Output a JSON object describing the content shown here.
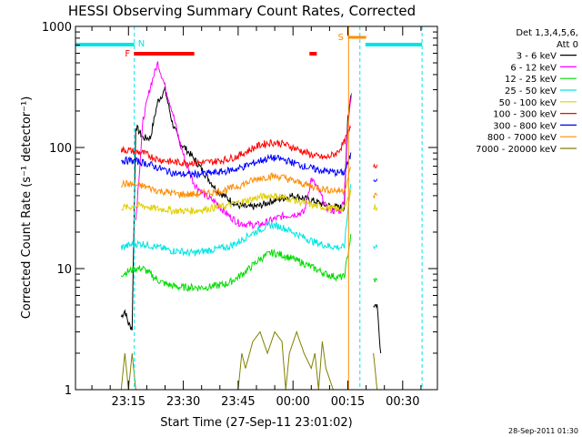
{
  "chart_data": {
    "type": "line",
    "title": "HESSI Observing Summary Count Rates, Corrected",
    "xlabel": "Start Time (27-Sep-11 23:01:02)",
    "ylabel": "Corrected Count Rate (s⁻¹ detector⁻¹)",
    "x_range_minutes": [
      -0.5,
      98.5
    ],
    "x_ticks": [
      {
        "m": 14,
        "label": "23:15"
      },
      {
        "m": 29,
        "label": "23:30"
      },
      {
        "m": 44,
        "label": "23:45"
      },
      {
        "m": 59,
        "label": "00:00"
      },
      {
        "m": 74,
        "label": "00:15"
      },
      {
        "m": 89,
        "label": "00:30"
      }
    ],
    "y_scale": "log",
    "ylim": [
      1,
      1000
    ],
    "y_ticks": [
      {
        "v": 1,
        "label": "1"
      },
      {
        "v": 10,
        "label": "10"
      },
      {
        "v": 100,
        "label": "100"
      },
      {
        "v": 1000,
        "label": "1000"
      }
    ],
    "legend": {
      "placement": "right",
      "header": [
        "Det 1,3,4,5,6,",
        "Att 0"
      ]
    },
    "series": [
      {
        "name": "3 - 6 keV",
        "color": "#000000",
        "x": [
          12,
          13,
          14,
          15,
          16,
          18,
          20,
          22,
          24,
          26,
          28,
          30,
          32,
          35,
          38,
          41,
          44,
          47,
          50,
          53,
          56,
          59,
          62,
          65,
          67,
          69,
          71,
          73,
          74,
          75,
          81,
          82,
          83
        ],
        "y": [
          4,
          4.5,
          3.5,
          3.2,
          150,
          120,
          120,
          240,
          300,
          160,
          110,
          95,
          80,
          60,
          45,
          38,
          33,
          32,
          33,
          36,
          38,
          40,
          38,
          36,
          34,
          33,
          32,
          32,
          180,
          300,
          5,
          5,
          2
        ]
      },
      {
        "name": "6 - 12 keV",
        "color": "#ff00ff",
        "x": [
          16,
          18,
          20,
          22,
          24,
          26,
          28,
          30,
          32,
          35,
          38,
          41,
          44,
          47,
          50,
          53,
          56,
          59,
          62,
          64,
          66,
          68,
          70,
          72,
          73,
          74,
          75
        ],
        "y": [
          25,
          170,
          320,
          500,
          320,
          200,
          110,
          70,
          50,
          40,
          35,
          28,
          24,
          23,
          23,
          25,
          27,
          28,
          29,
          55,
          45,
          32,
          30,
          30,
          38,
          150,
          280
        ]
      },
      {
        "name": "12 - 25 keV",
        "color": "#00dd00",
        "x": [
          12,
          14,
          16,
          18,
          20,
          22,
          24,
          26,
          28,
          30,
          32,
          35,
          38,
          41,
          44,
          47,
          50,
          53,
          56,
          59,
          62,
          65,
          68,
          71,
          73,
          75,
          81,
          82
        ],
        "y": [
          9,
          9.5,
          10,
          10,
          9,
          8,
          7.5,
          7.2,
          7,
          7,
          7,
          7,
          7.2,
          7.5,
          8.5,
          10,
          12,
          13.5,
          13,
          12,
          11,
          10,
          9,
          8.5,
          8.5,
          20,
          8,
          8
        ]
      },
      {
        "name": "25 - 50 keV",
        "color": "#00e5e5",
        "x": [
          12,
          14,
          16,
          18,
          20,
          22,
          24,
          26,
          28,
          30,
          32,
          35,
          38,
          41,
          44,
          47,
          50,
          53,
          56,
          59,
          62,
          65,
          68,
          71,
          73,
          75,
          81,
          82
        ],
        "y": [
          15,
          15.5,
          16,
          16,
          15.5,
          15,
          14.5,
          14,
          14,
          13.5,
          13.5,
          14,
          14.5,
          15,
          16.5,
          19,
          21,
          23,
          22,
          20,
          18,
          16.5,
          15.5,
          15,
          15,
          60,
          15,
          15
        ]
      },
      {
        "name": "50 - 100 keV",
        "color": "#e0d000",
        "x": [
          12,
          14,
          16,
          18,
          20,
          22,
          24,
          26,
          28,
          30,
          32,
          35,
          38,
          41,
          44,
          47,
          50,
          53,
          56,
          59,
          62,
          65,
          68,
          71,
          73,
          75,
          81,
          82
        ],
        "y": [
          32,
          32,
          33,
          33,
          32,
          31,
          31,
          30,
          30,
          30,
          30,
          31,
          32,
          33,
          35,
          37,
          39,
          40,
          39,
          37,
          35,
          33,
          32,
          31,
          31,
          45,
          32,
          32
        ]
      },
      {
        "name": "100 - 300 keV",
        "color": "#ff0000",
        "x": [
          12,
          14,
          16,
          18,
          20,
          22,
          24,
          26,
          28,
          30,
          32,
          35,
          38,
          41,
          44,
          47,
          50,
          53,
          56,
          59,
          62,
          65,
          68,
          71,
          73,
          74,
          75,
          81,
          82
        ],
        "y": [
          95,
          95,
          92,
          90,
          85,
          80,
          78,
          76,
          75,
          75,
          75,
          75,
          77,
          80,
          85,
          95,
          105,
          110,
          108,
          100,
          92,
          85,
          82,
          90,
          110,
          130,
          150,
          72,
          72
        ]
      },
      {
        "name": "300 - 800 keV",
        "color": "#0000ff",
        "x": [
          12,
          14,
          16,
          18,
          20,
          22,
          24,
          26,
          28,
          30,
          32,
          35,
          38,
          41,
          44,
          47,
          50,
          53,
          56,
          59,
          62,
          65,
          68,
          71,
          73,
          75,
          81,
          82
        ],
        "y": [
          78,
          78,
          77,
          75,
          72,
          68,
          65,
          62,
          60,
          60,
          60,
          61,
          62,
          64,
          67,
          72,
          78,
          82,
          80,
          75,
          70,
          66,
          64,
          62,
          62,
          90,
          55,
          55
        ]
      },
      {
        "name": "800 - 7000 keV",
        "color": "#ff8c00",
        "x": [
          12,
          14,
          16,
          18,
          20,
          22,
          24,
          26,
          28,
          30,
          32,
          35,
          38,
          41,
          44,
          47,
          50,
          53,
          56,
          59,
          62,
          65,
          68,
          71,
          73,
          75,
          81,
          82
        ],
        "y": [
          50,
          50,
          49,
          48,
          46,
          44,
          43,
          42,
          41,
          41,
          41,
          42,
          43,
          45,
          48,
          52,
          56,
          58,
          57,
          53,
          50,
          47,
          45,
          44,
          44,
          70,
          40,
          40
        ]
      },
      {
        "name": "7000 - 20000 keV",
        "color": "#808000",
        "x": [
          12,
          13,
          14,
          15,
          16,
          20,
          25,
          30,
          35,
          40,
          44,
          45,
          46,
          48,
          50,
          52,
          54,
          56,
          57,
          58,
          60,
          62,
          64,
          65,
          66,
          67,
          68,
          70,
          72,
          81,
          82
        ],
        "y": [
          1,
          2,
          1,
          2,
          1,
          1,
          1,
          1,
          1,
          1,
          1,
          2,
          1.5,
          2.5,
          3,
          2,
          3,
          2.5,
          1,
          2,
          3,
          2,
          1.5,
          2,
          1,
          2.5,
          1.5,
          1,
          1,
          2,
          1
        ]
      }
    ],
    "markers": {
      "flare": {
        "label": "F",
        "color": "#ff0000",
        "segments": [
          [
            15.5,
            32
          ],
          [
            63.5,
            65.5
          ]
        ]
      },
      "night": {
        "label": "N",
        "color": "#00e5e5",
        "boundaries": [
          15.6,
          77.3,
          94.3
        ]
      },
      "night_bars": {
        "color": "#00e5e5",
        "segments": [
          [
            -0.5,
            15.6
          ],
          [
            78.8,
            94.3
          ]
        ]
      },
      "saa": {
        "label": "S",
        "color": "#ff8c00",
        "segments": [
          [
            74,
            79
          ]
        ],
        "boundaries": [
          74.2
        ]
      },
      "data_gap_minutes": [
        75.5,
        80.8
      ]
    }
  },
  "footer": {
    "timestamp": "28-Sep-2011 01:30"
  }
}
